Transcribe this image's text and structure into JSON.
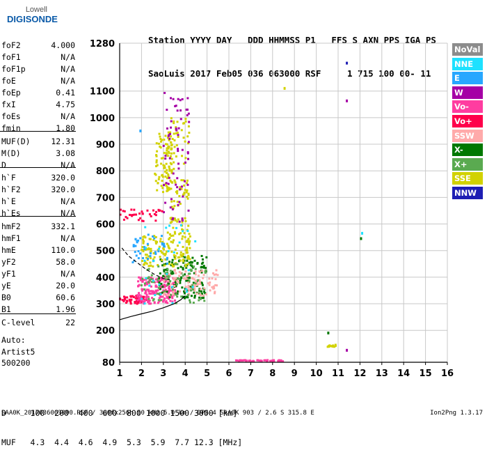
{
  "logo": {
    "top": "Lowell",
    "bottom": "DIGISONDE"
  },
  "header": {
    "line1": "Station YYYY DAY   DDD HHMMSS P1   FFS S AXN PPS IGA PS",
    "line2": "SaoLuis 2017 Feb05 036 063000 RSF     1 715 100 00- 11"
  },
  "params": [
    {
      "name": "foF2",
      "value": "4.000"
    },
    {
      "name": "foF1",
      "value": "N/A"
    },
    {
      "name": "foF1p",
      "value": "N/A"
    },
    {
      "name": "foE",
      "value": "N/A"
    },
    {
      "name": "foEp",
      "value": "0.41"
    },
    {
      "name": "fxI",
      "value": "4.75"
    },
    {
      "name": "foEs",
      "value": "N/A"
    },
    {
      "name": "fmin",
      "value": "1.80"
    },
    {
      "name": "MUF(D)",
      "value": "12.31"
    },
    {
      "name": "M(D)",
      "value": "3.08"
    },
    {
      "name": "D",
      "value": "N/A"
    },
    {
      "name": "h`F",
      "value": "320.0"
    },
    {
      "name": "h`F2",
      "value": "320.0"
    },
    {
      "name": "h`E",
      "value": "N/A"
    },
    {
      "name": "h`Es",
      "value": "N/A"
    },
    {
      "name": "hmF2",
      "value": "332.1"
    },
    {
      "name": "hmF1",
      "value": "N/A"
    },
    {
      "name": "hmE",
      "value": "110.0"
    },
    {
      "name": "yF2",
      "value": "58.0"
    },
    {
      "name": "yF1",
      "value": "N/A"
    },
    {
      "name": "yE",
      "value": "20.0"
    },
    {
      "name": "B0",
      "value": "60.6"
    },
    {
      "name": "B1",
      "value": "1.96"
    },
    {
      "name": "C-level",
      "value": "22"
    }
  ],
  "notes": {
    "auto": "Auto:",
    "artist": "Artist5",
    "version": "500200"
  },
  "legend": [
    {
      "label": "NoVal",
      "color": "#8c8c8c"
    },
    {
      "label": "NNE",
      "color": "#1ee1ff"
    },
    {
      "label": "E",
      "color": "#27a7ff"
    },
    {
      "label": "W",
      "color": "#a500a5"
    },
    {
      "label": "Vo-",
      "color": "#ff3ca0"
    },
    {
      "label": "Vo+",
      "color": "#ff004b"
    },
    {
      "label": "SSW",
      "color": "#ffaaaa"
    },
    {
      "label": "X-",
      "color": "#007800"
    },
    {
      "label": "X+",
      "color": "#5aaa50"
    },
    {
      "label": "SSE",
      "color": "#d2d200"
    },
    {
      "label": "NNW",
      "color": "#1e1eb4"
    }
  ],
  "muf_table": {
    "d_row": "D     100  200  400  600  800 1000 1500 3000 [km]",
    "muf_row": "MUF   4.3  4.4  4.6  4.9  5.3  5.9  7.7 12.3 [MHz]"
  },
  "footer": {
    "left": "SAA0K_2017036063000.RSF / 300fx256h 50 kHz 5.0 km / DPS-4 SAA0K 903 / 2.6 S 315.8 E",
    "right": "Ion2Png 1.3.17"
  },
  "chart_data": {
    "type": "scatter",
    "title": "",
    "xlabel": "",
    "ylabel": "",
    "xlim": [
      1,
      16
    ],
    "ylim": [
      80,
      1280
    ],
    "x_ticks": [
      1,
      2,
      3,
      4,
      5,
      6,
      7,
      8,
      9,
      10,
      11,
      12,
      13,
      14,
      15,
      16
    ],
    "y_ticks": [
      80,
      200,
      300,
      400,
      500,
      600,
      700,
      800,
      900,
      1000,
      1100,
      1280
    ],
    "grid": true,
    "traces": [
      {
        "x": [
          1.0,
          1.5,
          2.0,
          2.5,
          3.0,
          3.5,
          3.8,
          4.0
        ],
        "y": [
          240,
          252,
          262,
          272,
          285,
          300,
          315,
          330
        ]
      },
      {
        "x": [
          1.1,
          1.4,
          1.8,
          2.2,
          2.6,
          3.0,
          3.3
        ],
        "y": [
          510,
          480,
          455,
          430,
          410,
          395,
          390
        ]
      }
    ],
    "clusters": [
      {
        "direction": "Vo+",
        "x_range": [
          1.0,
          2.2
        ],
        "y_range": [
          300,
          330
        ],
        "count": 50
      },
      {
        "direction": "Vo-",
        "x_range": [
          1.8,
          3.6
        ],
        "y_range": [
          300,
          400
        ],
        "count": 190
      },
      {
        "direction": "X-",
        "x_range": [
          2.8,
          5.0
        ],
        "y_range": [
          320,
          480
        ],
        "count": 150
      },
      {
        "direction": "SSW",
        "x_range": [
          3.0,
          5.5
        ],
        "y_range": [
          330,
          430
        ],
        "count": 110
      },
      {
        "direction": "SSE",
        "x_range": [
          2.0,
          4.3
        ],
        "y_range": [
          440,
          560
        ],
        "count": 140
      },
      {
        "direction": "SSE",
        "x_range": [
          2.6,
          3.4
        ],
        "y_range": [
          720,
          940
        ],
        "count": 90
      },
      {
        "direction": "SSE",
        "x_range": [
          3.2,
          4.2
        ],
        "y_range": [
          560,
          1000
        ],
        "count": 110
      },
      {
        "direction": "W",
        "x_range": [
          3.0,
          4.2
        ],
        "y_range": [
          600,
          1100
        ],
        "count": 70
      },
      {
        "direction": "Vo+",
        "x_range": [
          1.0,
          3.0
        ],
        "y_range": [
          610,
          660
        ],
        "count": 35
      },
      {
        "direction": "E",
        "x_range": [
          1.6,
          3.2
        ],
        "y_range": [
          440,
          560
        ],
        "count": 40
      },
      {
        "direction": "X+",
        "x_range": [
          2.0,
          5.0
        ],
        "y_range": [
          300,
          450
        ],
        "count": 70
      },
      {
        "direction": "NNE",
        "x_range": [
          2.0,
          4.5
        ],
        "y_range": [
          300,
          600
        ],
        "count": 30
      },
      {
        "direction": "Vo-",
        "x_range": [
          6.3,
          8.5
        ],
        "y_range": [
          83,
          88
        ],
        "count": 45
      },
      {
        "direction": "SSE",
        "x_range": [
          10.5,
          10.9
        ],
        "y_range": [
          138,
          146
        ],
        "count": 12
      }
    ],
    "isolated": [
      {
        "direction": "E",
        "x": 1.95,
        "y": 950
      },
      {
        "direction": "NNW",
        "x": 11.4,
        "y": 1205
      },
      {
        "direction": "W",
        "x": 11.4,
        "y": 1063
      },
      {
        "direction": "SSE",
        "x": 8.55,
        "y": 1110
      },
      {
        "direction": "X-",
        "x": 10.55,
        "y": 190
      },
      {
        "direction": "W",
        "x": 11.4,
        "y": 125
      },
      {
        "direction": "X-",
        "x": 12.05,
        "y": 545
      },
      {
        "direction": "NNE",
        "x": 12.1,
        "y": 565
      }
    ]
  }
}
